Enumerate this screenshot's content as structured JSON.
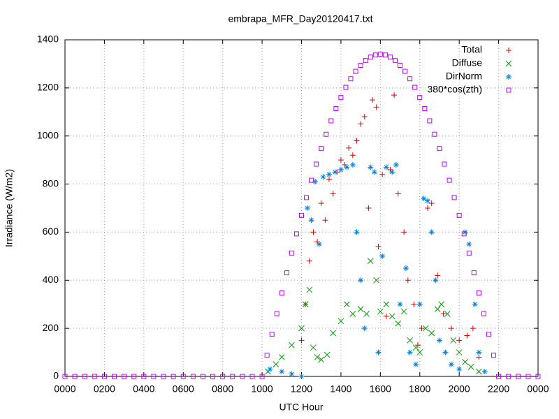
{
  "chart_data": {
    "type": "scatter",
    "title": "embrapa_MFR_Day20120417.txt",
    "x_label": "UTC Hour",
    "y_label": "Irradiance (W/m2)",
    "xlim": [
      0,
      24
    ],
    "ylim": [
      0,
      1400
    ],
    "xticks": [
      {
        "value": 0,
        "label": "0000"
      },
      {
        "value": 2,
        "label": "0200"
      },
      {
        "value": 4,
        "label": "0400"
      },
      {
        "value": 6,
        "label": "0600"
      },
      {
        "value": 8,
        "label": "0800"
      },
      {
        "value": 10,
        "label": "1000"
      },
      {
        "value": 12,
        "label": "1200"
      },
      {
        "value": 14,
        "label": "1400"
      },
      {
        "value": 16,
        "label": "1600"
      },
      {
        "value": 18,
        "label": "1800"
      },
      {
        "value": 20,
        "label": "2000"
      },
      {
        "value": 22,
        "label": "2200"
      },
      {
        "value": 24,
        "label": "0000"
      }
    ],
    "yticks": [
      0,
      200,
      400,
      600,
      800,
      1000,
      1200,
      1400
    ],
    "grid": true,
    "legend": "top-right",
    "series": [
      {
        "name": "Total",
        "color": "#e00000",
        "marker": "plus",
        "x": [
          12.0,
          12.2,
          12.4,
          12.6,
          12.8,
          13.0,
          13.2,
          13.4,
          13.6,
          13.8,
          14.0,
          14.2,
          14.4,
          14.6,
          14.8,
          15.0,
          15.2,
          15.4,
          15.6,
          15.8,
          15.9,
          16.1,
          16.3,
          16.5,
          16.7,
          16.9,
          17.2,
          17.4,
          17.7,
          17.9,
          18.1,
          18.4,
          18.6,
          18.9,
          19.2,
          19.6,
          20.0,
          20.4,
          20.7,
          21.0
        ],
        "values": [
          150,
          300,
          480,
          600,
          560,
          720,
          650,
          820,
          760,
          850,
          900,
          880,
          950,
          920,
          980,
          1050,
          1080,
          700,
          1150,
          1120,
          540,
          840,
          250,
          860,
          1170,
          760,
          600,
          400,
          300,
          130,
          200,
          700,
          720,
          420,
          260,
          200,
          150,
          170,
          200,
          80
        ]
      },
      {
        "name": "Diffuse",
        "color": "#00a000",
        "marker": "cross",
        "x": [
          10.3,
          10.7,
          11.0,
          11.5,
          12.0,
          12.2,
          12.4,
          12.6,
          12.8,
          13.0,
          13.3,
          13.6,
          14.0,
          14.3,
          14.6,
          15.0,
          15.3,
          15.5,
          15.8,
          16.0,
          16.3,
          16.6,
          16.9,
          17.2,
          17.5,
          17.8,
          18.0,
          18.3,
          18.6,
          18.9,
          19.1,
          19.4,
          19.7,
          20.0,
          20.3,
          20.6,
          21.0
        ],
        "values": [
          20,
          50,
          80,
          130,
          200,
          300,
          360,
          120,
          80,
          70,
          90,
          180,
          230,
          300,
          260,
          280,
          260,
          480,
          400,
          270,
          300,
          250,
          220,
          270,
          150,
          120,
          100,
          200,
          180,
          280,
          300,
          260,
          150,
          100,
          60,
          40,
          20
        ]
      },
      {
        "name": "DirNorm",
        "color": "#0080e0",
        "marker": "star",
        "x": [
          10.4,
          11.0,
          11.5,
          12.0,
          12.3,
          12.5,
          12.7,
          12.9,
          13.1,
          13.4,
          13.7,
          14.0,
          14.3,
          14.6,
          14.8,
          15.0,
          15.2,
          15.5,
          15.7,
          15.9,
          16.1,
          16.3,
          16.6,
          16.8,
          17.0,
          17.3,
          17.5,
          17.8,
          18.0,
          18.2,
          18.4,
          18.6,
          18.8,
          19.0,
          19.3,
          19.6,
          20.0,
          20.3,
          20.5,
          20.8,
          21.0,
          21.3
        ],
        "values": [
          30,
          20,
          10,
          0,
          700,
          650,
          810,
          550,
          830,
          840,
          850,
          860,
          870,
          880,
          600,
          400,
          200,
          870,
          850,
          100,
          500,
          870,
          850,
          880,
          300,
          450,
          100,
          50,
          300,
          740,
          730,
          600,
          400,
          150,
          100,
          50,
          30,
          600,
          550,
          300,
          100,
          20
        ]
      },
      {
        "name": "380*cos(zth)",
        "color": "#c000ff",
        "marker": "square",
        "x": [
          0,
          0.5,
          1,
          1.5,
          2,
          2.5,
          3,
          3.5,
          4,
          4.5,
          5,
          5.5,
          6,
          6.5,
          7,
          7.5,
          8,
          8.5,
          9,
          9.5,
          10.0,
          10.25,
          10.5,
          10.75,
          11,
          11.25,
          11.5,
          11.75,
          12,
          12.25,
          12.5,
          12.75,
          13,
          13.25,
          13.5,
          13.75,
          14,
          14.25,
          14.5,
          14.75,
          15,
          15.25,
          15.5,
          15.75,
          16,
          16.25,
          16.5,
          16.75,
          17,
          17.25,
          17.5,
          17.75,
          18,
          18.25,
          18.5,
          18.75,
          19,
          19.25,
          19.5,
          19.75,
          20,
          20.25,
          20.5,
          20.75,
          21,
          21.25,
          21.5,
          21.75,
          22,
          22.5,
          23,
          23.5,
          24
        ],
        "values": [
          0,
          0,
          0,
          0,
          0,
          0,
          0,
          0,
          0,
          0,
          0,
          0,
          0,
          0,
          0,
          0,
          0,
          0,
          0,
          0,
          0,
          88,
          175,
          261,
          347,
          431,
          513,
          593,
          670,
          744,
          816,
          883,
          948,
          1007,
          1063,
          1114,
          1160,
          1202,
          1238,
          1269,
          1294,
          1314,
          1328,
          1337,
          1340,
          1337,
          1328,
          1314,
          1294,
          1269,
          1238,
          1202,
          1160,
          1114,
          1063,
          1007,
          948,
          883,
          816,
          744,
          670,
          593,
          513,
          431,
          347,
          261,
          175,
          88,
          0,
          0,
          0,
          0,
          0
        ]
      }
    ]
  }
}
